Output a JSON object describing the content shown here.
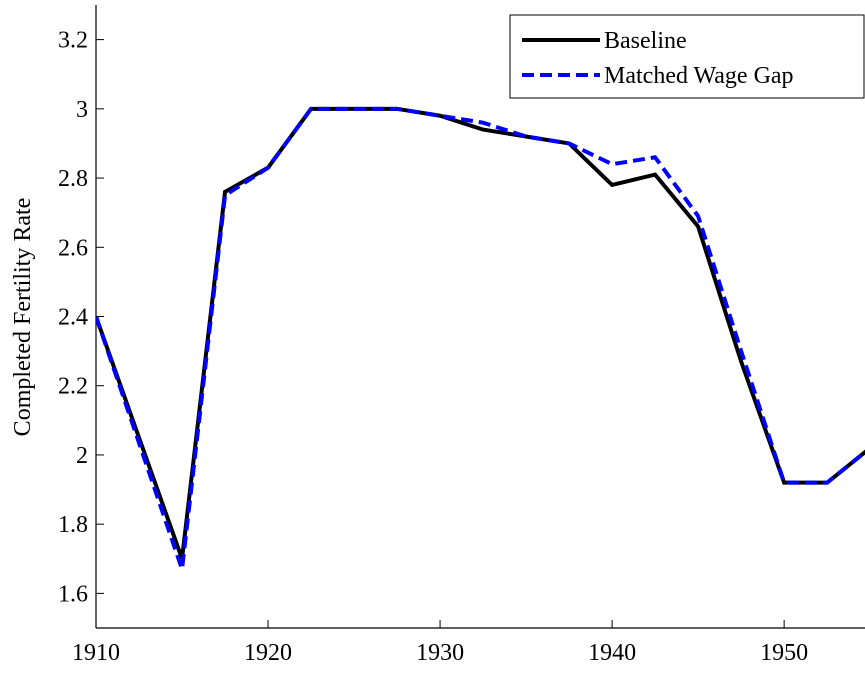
{
  "chart_data": {
    "type": "line",
    "y_label": "Completed Fertility Rate",
    "x": [
      1910,
      1915,
      1917.5,
      1920,
      1922.5,
      1925,
      1927.5,
      1930,
      1932.5,
      1935,
      1937.5,
      1940,
      1942.5,
      1945,
      1947.5,
      1950,
      1952.5,
      1955
    ],
    "series": [
      {
        "name": "Baseline",
        "color": "#000000",
        "dash": false,
        "values": [
          2.4,
          1.7,
          2.76,
          2.83,
          3.0,
          3.0,
          3.0,
          2.98,
          2.94,
          2.92,
          2.9,
          2.78,
          2.81,
          2.66,
          2.27,
          1.92,
          1.92,
          2.02
        ]
      },
      {
        "name": "Matched Wage Gap",
        "color": "#0000ff",
        "dash": true,
        "values": [
          2.4,
          1.67,
          2.75,
          2.83,
          3.0,
          3.0,
          3.0,
          2.98,
          2.96,
          2.92,
          2.9,
          2.84,
          2.86,
          2.69,
          2.3,
          1.92,
          1.92,
          2.02
        ]
      }
    ],
    "xlim": [
      1910,
      1954.7
    ],
    "ylim": [
      1.5,
      3.3
    ],
    "xticks": [
      1910,
      1920,
      1930,
      1940,
      1950
    ],
    "yticks": [
      1.6,
      1.8,
      2,
      2.2,
      2.4,
      2.6,
      2.8,
      3,
      3.2
    ],
    "legend": "upper right"
  }
}
